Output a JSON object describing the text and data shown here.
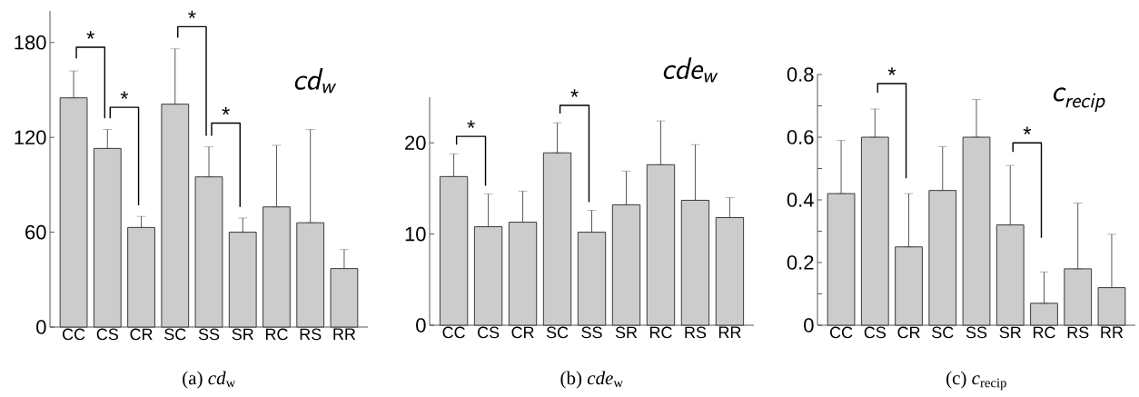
{
  "chart_data": [
    {
      "type": "bar",
      "title": "cd$_{w}$",
      "categories": [
        "CC",
        "CS",
        "CR",
        "SC",
        "SS",
        "SR",
        "RC",
        "RS",
        "RR"
      ],
      "values": [
        145,
        113,
        63,
        141,
        95,
        60,
        76,
        66,
        37
      ],
      "errors": [
        [
          145,
          162
        ],
        [
          113,
          125
        ],
        [
          63,
          70
        ],
        [
          141,
          176
        ],
        [
          95,
          114
        ],
        [
          60,
          69
        ],
        [
          76,
          115
        ],
        [
          66,
          125
        ],
        [
          37,
          49
        ]
      ],
      "color": "#cccccc",
      "ylim": [
        0,
        200
      ],
      "yticks": [
        0,
        60,
        120,
        180
      ],
      "annotations": [
        "*",
        "*",
        "*",
        "*",
        "(a) *cd*$_{w}$"
      ]
    },
    {
      "type": "bar",
      "title": "cde$_{w}$",
      "categories": [
        "CC",
        "CS",
        "CR",
        "SC",
        "SS",
        "SR",
        "RC",
        "RS",
        "RR"
      ],
      "values": [
        16.3,
        10.8,
        11.3,
        18.9,
        10.2,
        13.2,
        17.6,
        13.7,
        11.8
      ],
      "errors": [
        [
          16.3,
          18.8
        ],
        [
          10.8,
          14.4
        ],
        [
          11.3,
          14.7
        ],
        [
          18.9,
          22.2
        ],
        [
          10.2,
          12.6
        ],
        [
          13.2,
          16.9
        ],
        [
          17.6,
          22.4
        ],
        [
          13.7,
          19.8
        ],
        [
          11.8,
          14.0
        ]
      ],
      "color": "#cccccc",
      "ylim": [
        0,
        25
      ],
      "yticks": [
        0,
        10,
        20
      ],
      "annotations": [
        "*",
        "*",
        "(b) *cde*$_{w}$"
      ]
    },
    {
      "type": "bar",
      "title": "c$_{recip}$",
      "categories": [
        "CC",
        "CS",
        "CR",
        "SC",
        "SS",
        "SR",
        "RC",
        "RS",
        "RR"
      ],
      "values": [
        0.42,
        0.6,
        0.25,
        0.43,
        0.6,
        0.32,
        0.07,
        0.18,
        0.12
      ],
      "errors": [
        [
          0.42,
          0.59
        ],
        [
          0.6,
          0.69
        ],
        [
          0.25,
          0.42
        ],
        [
          0.43,
          0.57
        ],
        [
          0.6,
          0.72
        ],
        [
          0.32,
          0.51
        ],
        [
          0.07,
          0.17
        ],
        [
          0.18,
          0.39
        ],
        [
          0.12,
          0.29
        ]
      ],
      "color": "#cccccc",
      "ylim": [
        0,
        0.8
      ],
      "yticks": [
        0,
        {
          "value": 0.1,
          "label": null
        },
        0.2,
        {
          "value": 0.3,
          "label": null
        },
        0.4,
        {
          "value": 0.5,
          "label": null
        },
        0.6,
        {
          "value": 0.7,
          "label": null
        },
        0.8
      ],
      "annotations": [
        "*",
        "*",
        "(c) *c*$_{recip}$"
      ]
    }
  ]
}
